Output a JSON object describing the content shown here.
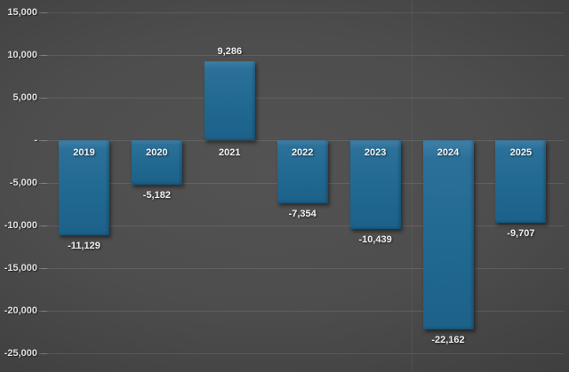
{
  "chart_data": {
    "type": "bar",
    "title": "",
    "xlabel": "",
    "ylabel": "",
    "categories": [
      "2019",
      "2020",
      "2021",
      "2022",
      "2023",
      "2024",
      "2025"
    ],
    "values": [
      -11129,
      -5182,
      9286,
      -7354,
      -10439,
      -22162,
      -9707
    ],
    "value_labels": [
      "-11,129",
      "-5,182",
      "9,286",
      "-7,354",
      "-10,439",
      "-22,162",
      "-9,707"
    ],
    "ylim": [
      -25000,
      15000
    ],
    "ytick_values": [
      15000,
      10000,
      5000,
      0,
      -5000,
      -10000,
      -15000,
      -20000,
      -25000
    ],
    "ytick_labels": [
      "15,000",
      "10,000",
      "5,000",
      "-",
      "-5,000",
      "-10,000",
      "-15,000",
      "-20,000",
      "-25,000"
    ],
    "grid": "horizontal",
    "legend": "none",
    "bar_color": "#21698f",
    "bar_color_top": "#3e80a6",
    "background_center_color": "#4f4f4f",
    "background_edge_color": "#242424",
    "label_color": "#ededed",
    "category_label_position": "below-zero-axis",
    "value_label_position": "outside-end"
  }
}
